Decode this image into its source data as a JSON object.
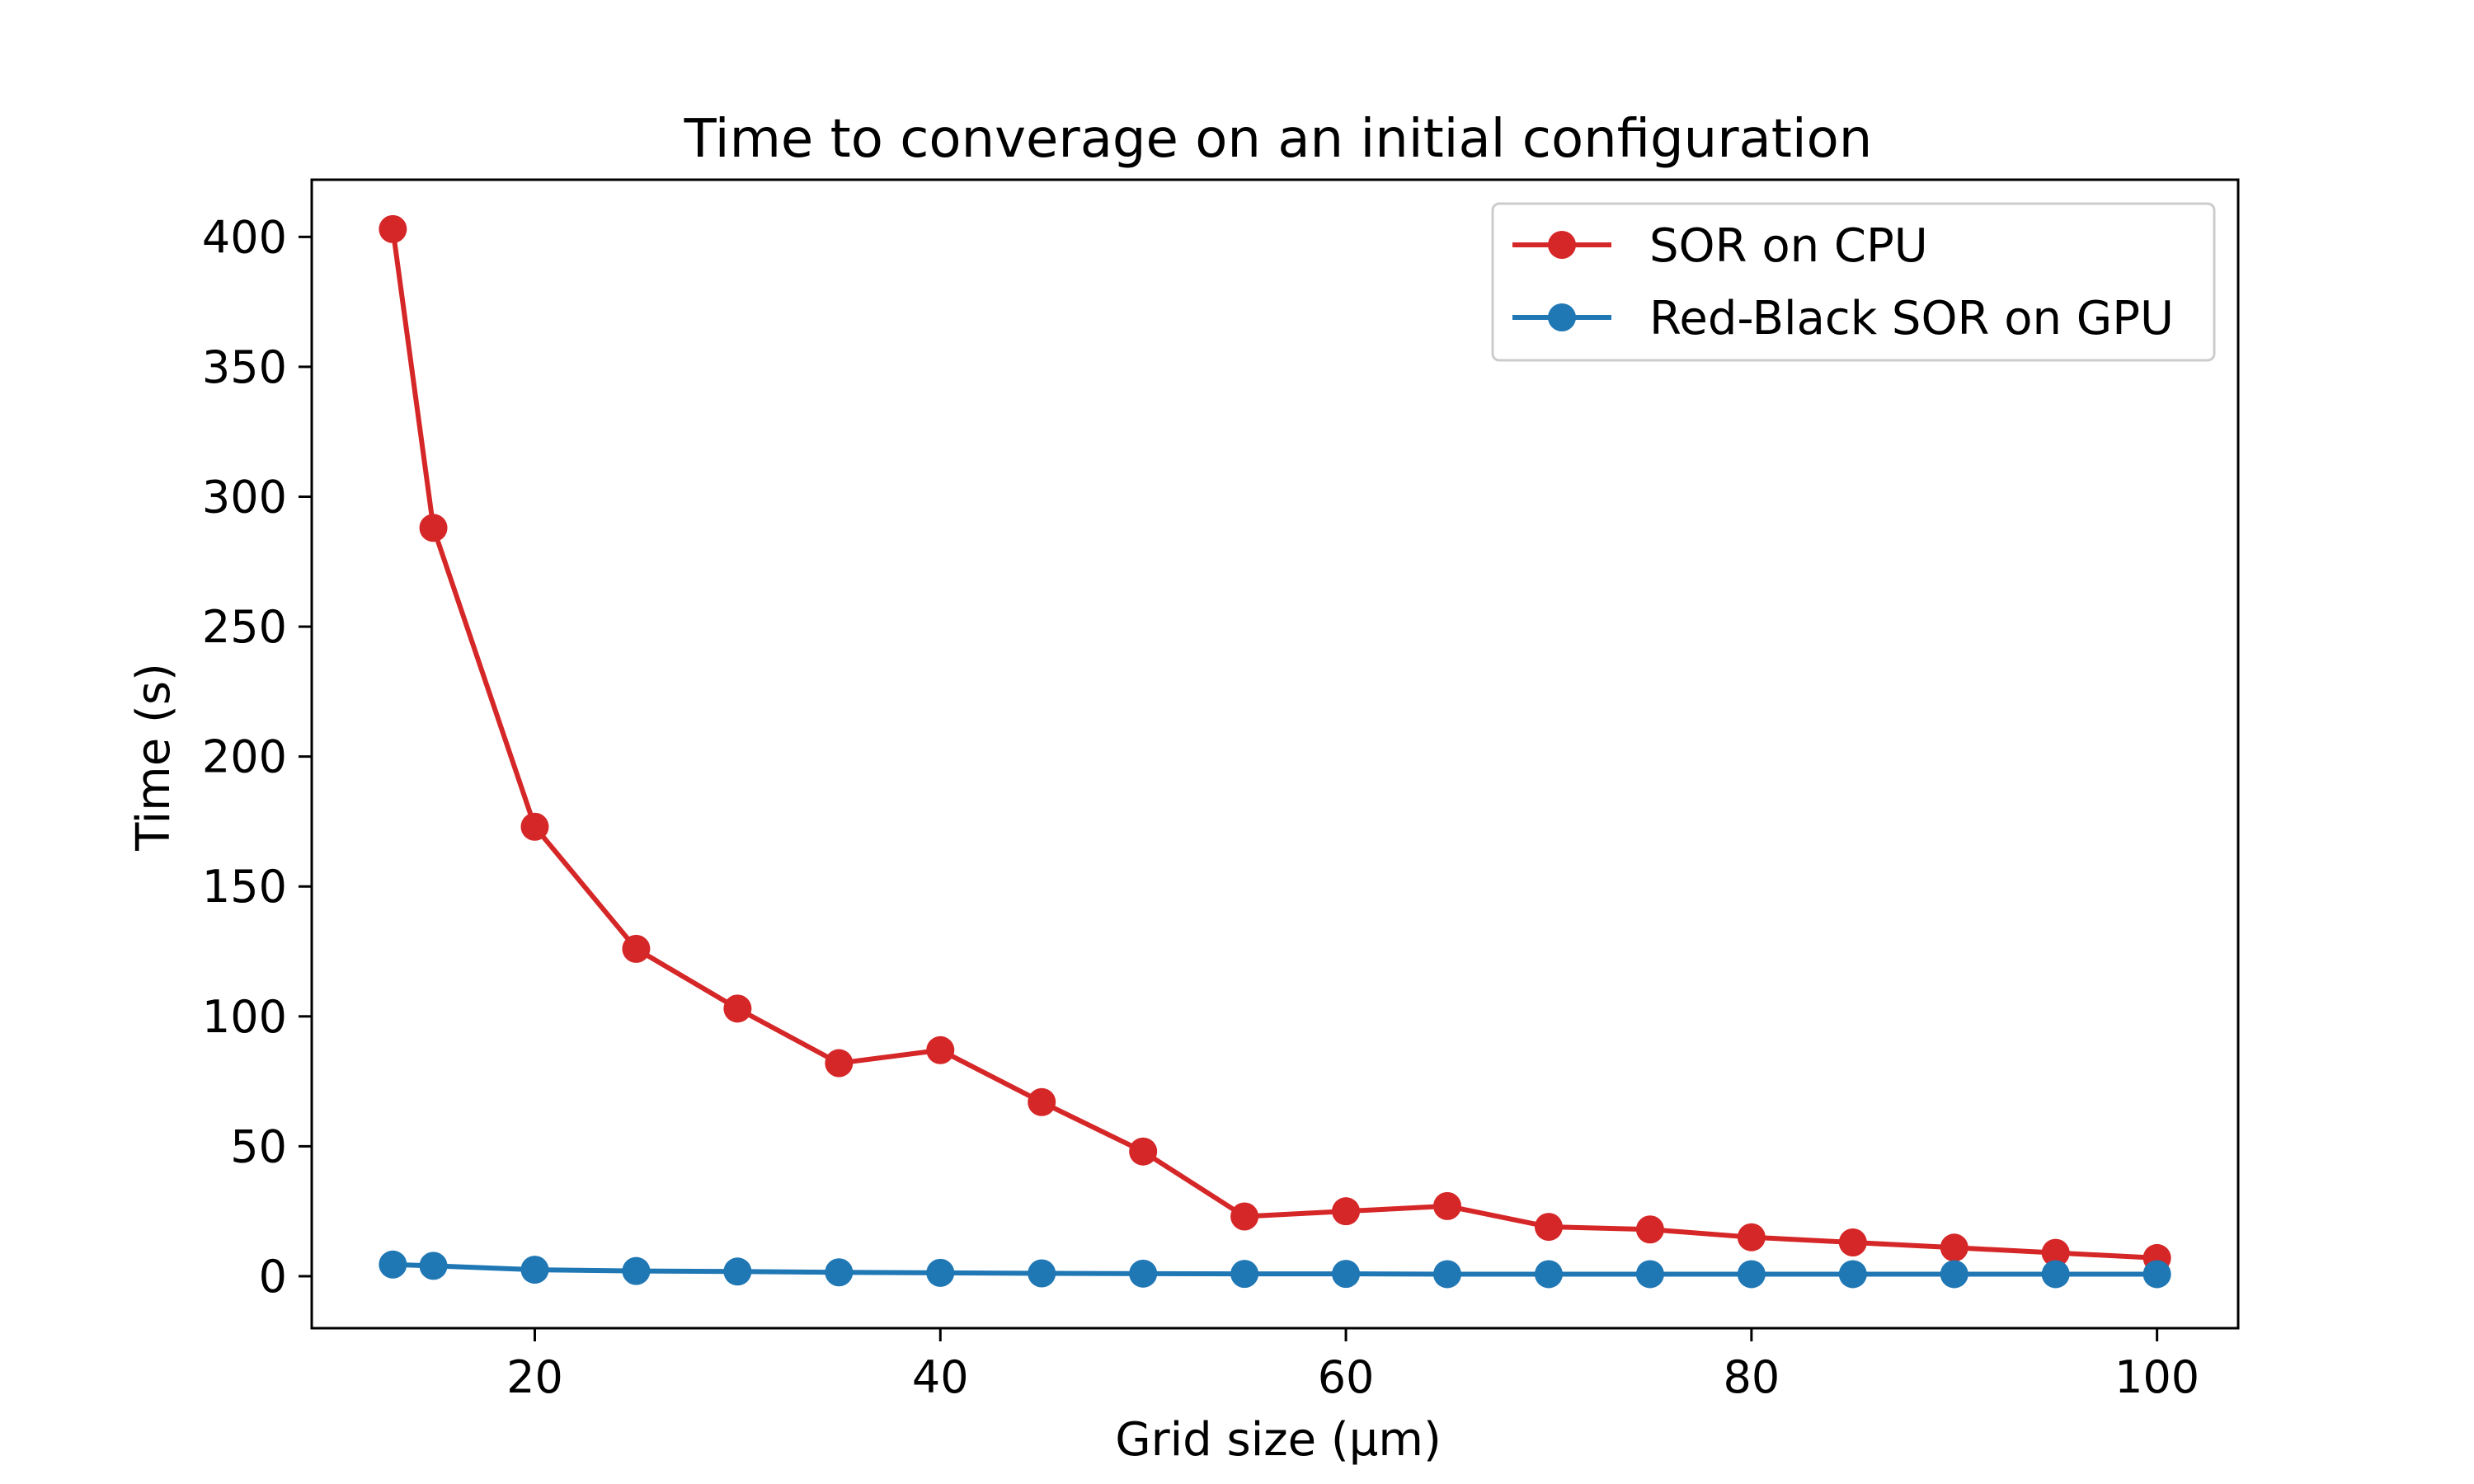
{
  "chart_data": {
    "type": "line",
    "title": "Time to converage on an initial configuration",
    "xlabel": "Grid size (μm)",
    "ylabel": "Time (s)",
    "xlim": [
      9,
      104
    ],
    "ylim": [
      -20,
      422
    ],
    "xticks": [
      20,
      40,
      60,
      80,
      100
    ],
    "yticks": [
      0,
      50,
      100,
      150,
      200,
      250,
      300,
      350,
      400
    ],
    "grid": false,
    "legend_position": "upper-right",
    "x": [
      13,
      15,
      20,
      25,
      30,
      35,
      40,
      45,
      50,
      55,
      60,
      65,
      70,
      75,
      80,
      85,
      90,
      95,
      100
    ],
    "series": [
      {
        "name": "SOR on CPU",
        "color": "#d62728",
        "values": [
          403,
          288,
          173,
          126,
          103,
          82,
          87,
          67,
          48,
          23,
          25,
          27,
          19,
          18,
          15,
          13,
          11,
          9,
          7
        ]
      },
      {
        "name": "Red-Black SOR on GPU",
        "color": "#1f77b4",
        "values": [
          4.5,
          4,
          2.5,
          2,
          1.8,
          1.5,
          1.3,
          1.1,
          1,
          0.9,
          0.9,
          0.8,
          0.8,
          0.8,
          0.8,
          0.8,
          0.8,
          0.8,
          0.8
        ]
      }
    ]
  }
}
